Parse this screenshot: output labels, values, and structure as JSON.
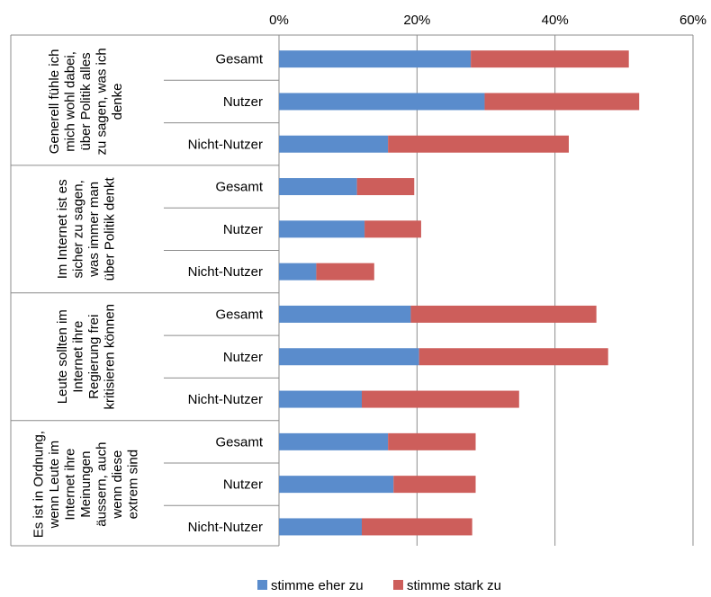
{
  "chart_data": {
    "type": "bar",
    "orientation": "horizontal",
    "stacked": true,
    "x_axis": {
      "min": 0,
      "max": 60,
      "ticks": [
        0,
        20,
        40,
        60
      ],
      "tick_labels": [
        "0%",
        "20%",
        "40%",
        "60%"
      ],
      "position": "top",
      "grid": true
    },
    "groups": [
      {
        "label": "Generell fühle ich mich wohl dabei, über Politik alles zu sagen, was ich denke",
        "label_lines": [
          "Generell fühle ich",
          "mich wohl dabei,",
          "über Politik alles",
          "zu sagen, was ich",
          "denke"
        ],
        "categories": [
          "Gesamt",
          "Nutzer",
          "Nicht-Nutzer"
        ],
        "values": {
          "stimme eher zu": [
            27.8,
            29.8,
            15.8
          ],
          "stimme stark zu": [
            22.9,
            22.4,
            26.2
          ]
        }
      },
      {
        "label": "Im Internet ist es sicher zu sagen, was immer man über Politik denkt",
        "label_lines": [
          "Im Internet ist es",
          "sicher zu sagen,",
          "was immer man",
          "über Politik denkt"
        ],
        "categories": [
          "Gesamt",
          "Nutzer",
          "Nicht-Nutzer"
        ],
        "values": {
          "stimme eher zu": [
            11.3,
            12.4,
            5.4
          ],
          "stimme stark zu": [
            8.3,
            8.2,
            8.4
          ]
        }
      },
      {
        "label": "Leute sollten im Internet ihre Regierung frei kritisieren können",
        "label_lines": [
          "Leute sollten im",
          "Internet ihre",
          "Regierung frei",
          "kritisieren können"
        ],
        "categories": [
          "Gesamt",
          "Nutzer",
          "Nicht-Nutzer"
        ],
        "values": {
          "stimme eher zu": [
            19.1,
            20.3,
            12.0
          ],
          "stimme stark zu": [
            26.9,
            27.4,
            22.8
          ]
        }
      },
      {
        "label": "Es ist in Ordnung, wenn Leute im Internet ihre Meinungen äussern, auch wenn diese extrem sind",
        "label_lines": [
          "Es ist in Ordnung,",
          "wenn Leute im",
          "Internet ihre",
          "Meinungen",
          "äussern, auch",
          "wenn diese",
          "extrem sind"
        ],
        "categories": [
          "Gesamt",
          "Nutzer",
          "Nicht-Nutzer"
        ],
        "values": {
          "stimme eher zu": [
            15.8,
            16.6,
            12.0
          ],
          "stimme stark zu": [
            12.7,
            11.9,
            16.0
          ]
        }
      }
    ],
    "series": [
      {
        "name": "stimme eher zu",
        "color": "#5a8ccc"
      },
      {
        "name": "stimme stark zu",
        "color": "#cd5e5b"
      }
    ],
    "legend": {
      "position": "bottom"
    }
  }
}
